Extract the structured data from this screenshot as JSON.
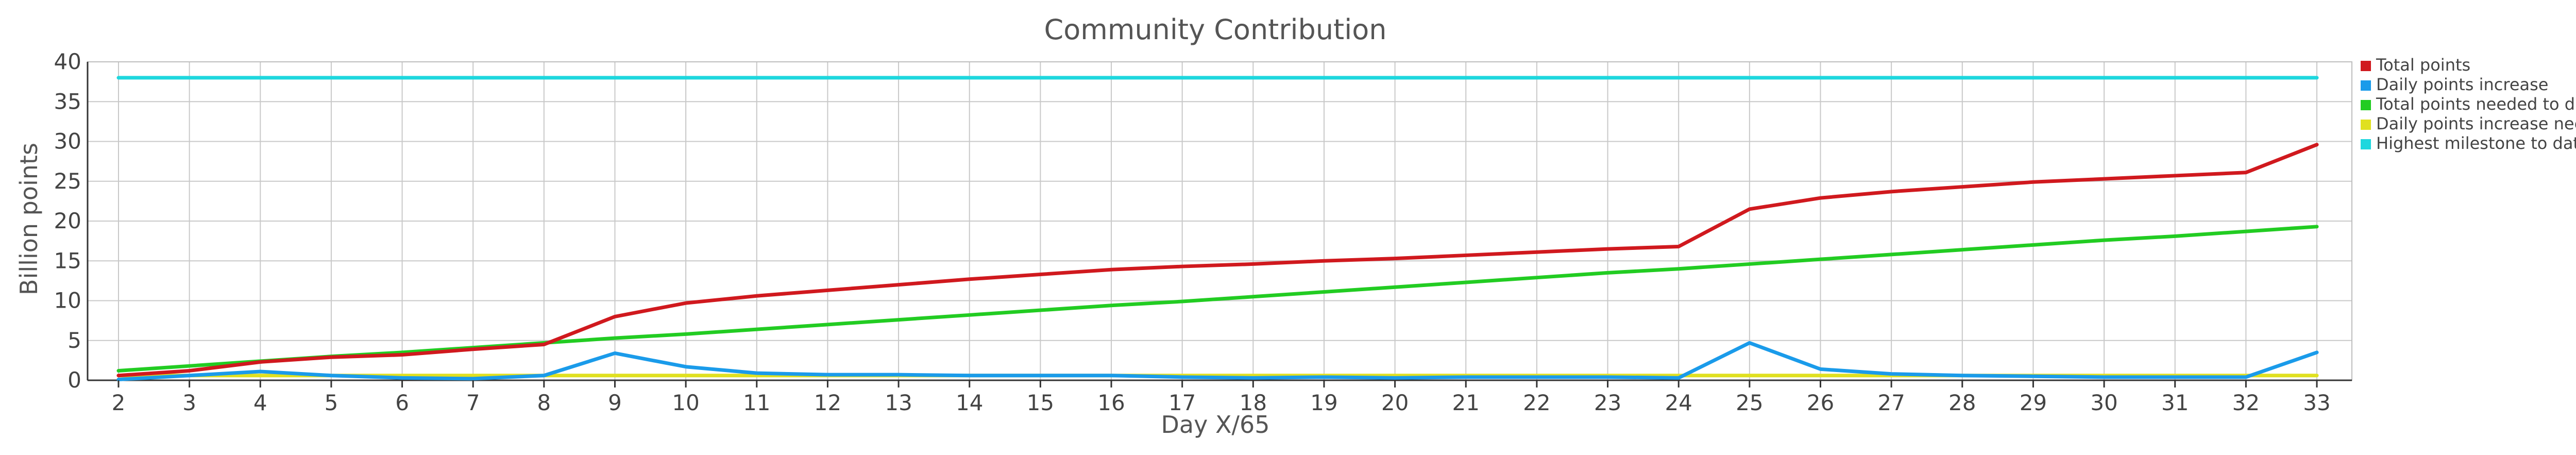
{
  "chart_data": {
    "type": "line",
    "title": "Community Contribution",
    "xlabel": "Day X/65",
    "ylabel": "Billion points",
    "x": [
      2,
      3,
      4,
      5,
      6,
      7,
      8,
      9,
      10,
      11,
      12,
      13,
      14,
      15,
      16,
      17,
      18,
      19,
      20,
      21,
      22,
      23,
      24,
      25,
      26,
      27,
      28,
      29,
      30,
      31,
      32,
      33
    ],
    "xlim": [
      2,
      33
    ],
    "ylim": [
      0,
      40
    ],
    "yticks": [
      0,
      5,
      10,
      15,
      20,
      25,
      30,
      35,
      40
    ],
    "grid": true,
    "legend_position": "right",
    "series": [
      {
        "name": "Total points",
        "color": "#d0191e",
        "values": [
          0.6,
          1.2,
          2.3,
          2.9,
          3.2,
          3.9,
          4.5,
          8.0,
          9.7,
          10.6,
          11.3,
          12.0,
          12.7,
          13.3,
          13.9,
          14.3,
          14.6,
          15.0,
          15.3,
          15.7,
          16.1,
          16.5,
          16.8,
          21.5,
          22.9,
          23.7,
          24.3,
          24.9,
          25.3,
          25.7,
          26.1,
          29.6
        ]
      },
      {
        "name": "Daily points increase",
        "color": "#1a9bea",
        "values": [
          0.1,
          0.6,
          1.1,
          0.6,
          0.3,
          0.2,
          0.6,
          3.4,
          1.7,
          0.9,
          0.7,
          0.7,
          0.6,
          0.6,
          0.6,
          0.4,
          0.3,
          0.4,
          0.3,
          0.4,
          0.4,
          0.4,
          0.3,
          4.7,
          1.4,
          0.8,
          0.6,
          0.5,
          0.4,
          0.4,
          0.4,
          3.5
        ]
      },
      {
        "name": "Total points needed to date",
        "color": "#22cc22",
        "values": [
          1.2,
          1.8,
          2.4,
          3.0,
          3.5,
          4.1,
          4.7,
          5.3,
          5.8,
          6.4,
          7.0,
          7.6,
          8.2,
          8.8,
          9.4,
          9.9,
          10.5,
          11.1,
          11.7,
          12.3,
          12.9,
          13.5,
          14.0,
          14.6,
          15.2,
          15.8,
          16.4,
          17.0,
          17.6,
          18.1,
          18.7,
          19.3
        ]
      },
      {
        "name": "Daily points increase needed",
        "color": "#e0e020",
        "values": [
          0.6,
          0.6,
          0.6,
          0.6,
          0.6,
          0.6,
          0.6,
          0.6,
          0.6,
          0.6,
          0.6,
          0.6,
          0.6,
          0.6,
          0.6,
          0.6,
          0.6,
          0.6,
          0.6,
          0.6,
          0.6,
          0.6,
          0.6,
          0.6,
          0.6,
          0.6,
          0.6,
          0.6,
          0.6,
          0.6,
          0.6,
          0.6
        ]
      },
      {
        "name": "Highest milestone to date",
        "color": "#1ed7de",
        "values": [
          38,
          38,
          38,
          38,
          38,
          38,
          38,
          38,
          38,
          38,
          38,
          38,
          38,
          38,
          38,
          38,
          38,
          38,
          38,
          38,
          38,
          38,
          38,
          38,
          38,
          38,
          38,
          38,
          38,
          38,
          38,
          38
        ]
      }
    ]
  }
}
